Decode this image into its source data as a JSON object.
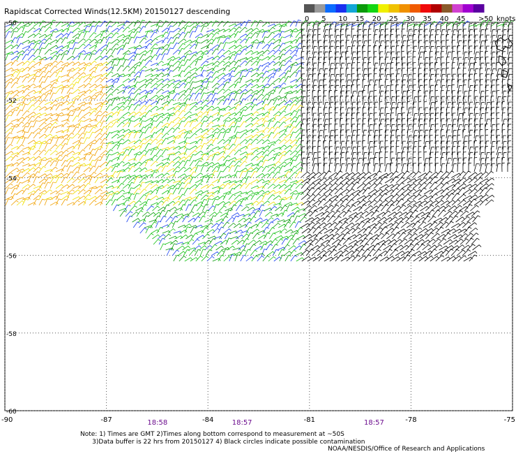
{
  "title": "Rapidscat Corrected Winds(12.5KM) 20150127 descending",
  "legend": {
    "units": "knots",
    "ticks": [
      "0",
      "5",
      "10",
      "15",
      "20",
      "25",
      "30",
      "35",
      "40",
      "45",
      ">50"
    ],
    "colors": [
      "#555555",
      "#9a9a9a",
      "#0c6cff",
      "#1a30f0",
      "#13a6d6",
      "#0a9a0a",
      "#13d613",
      "#f0f000",
      "#f0c200",
      "#f09000",
      "#f05a00",
      "#f00a0a",
      "#b00000",
      "#8a5a2a",
      "#d040d0",
      "#a000d0",
      "#5a00a0"
    ]
  },
  "map": {
    "lon_ticks": [
      "-90",
      "-87",
      "-84",
      "-81",
      "-78",
      "-75"
    ],
    "lat_ticks": [
      "-50",
      "-52",
      "-54",
      "-56",
      "-58",
      "-60"
    ],
    "lon_range": [
      -90,
      -75
    ],
    "lat_range": [
      -60,
      -50
    ]
  },
  "times": [
    {
      "label": "18:58",
      "lon": -85.5
    },
    {
      "label": "18:57",
      "lon": -83.0
    },
    {
      "label": "18:57",
      "lon": -79.1
    }
  ],
  "notes": "Note: 1) Times are GMT 2)Times along bottom correspond to measurement at ~50S\n      3)Data buffer is 22 hrs from 20150127 4) Black circles indicate possible contamination",
  "credit": "NOAA/NESDIS/Office of Research and Applications"
}
